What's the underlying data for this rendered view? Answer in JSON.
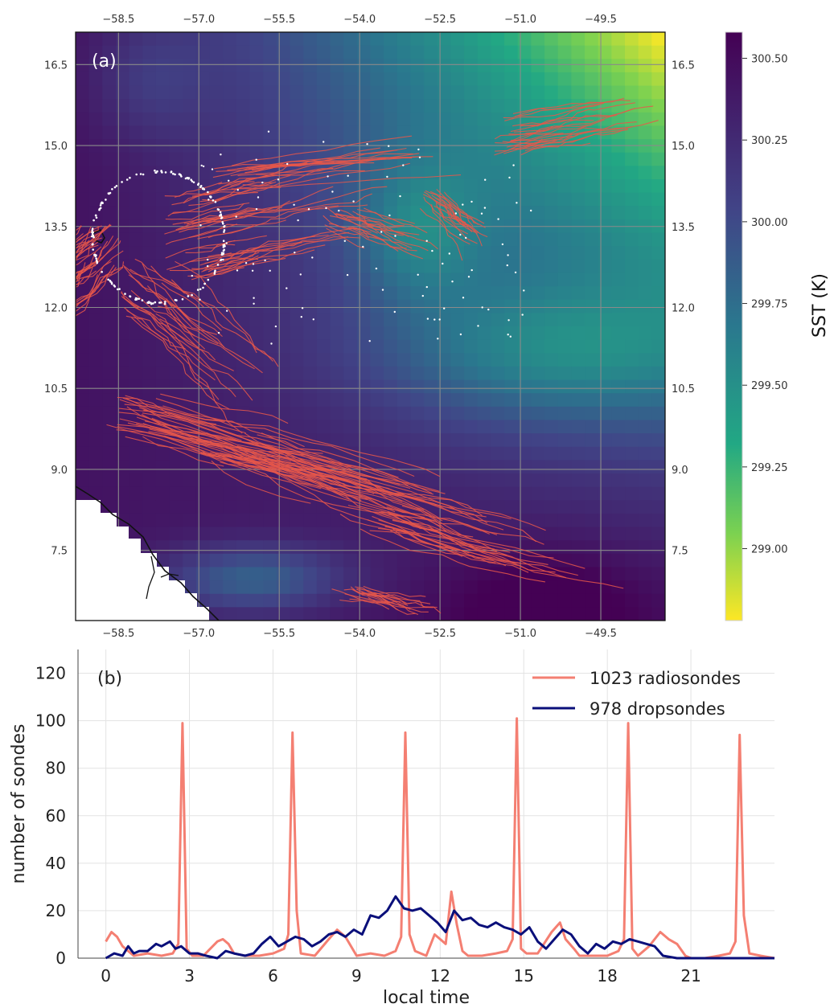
{
  "chart_data": [
    {
      "type": "heatmap",
      "panel_label": "(a)",
      "xticks": [
        "−58.5",
        "−57.0",
        "−55.5",
        "−54.0",
        "−52.5",
        "−51.0",
        "−49.5"
      ],
      "yticks": [
        "16.5",
        "15.0",
        "13.5",
        "12.0",
        "10.5",
        "9.0",
        "7.5"
      ],
      "xlim": [
        -59.3,
        -48.3
      ],
      "ylim": [
        6.2,
        17.1
      ],
      "colorbar": {
        "label": "SST (K)",
        "ticks": [
          "300.50",
          "300.25",
          "300.00",
          "299.75",
          "299.50",
          "299.25",
          "299.00"
        ],
        "range": [
          298.78,
          300.58
        ],
        "colormap": "viridis_r"
      },
      "track_color": "#e8574a",
      "dropsonde_color": "#ffffff"
    },
    {
      "type": "line",
      "panel_label": "(b)",
      "xlabel": "local time",
      "ylabel": "number of sondes",
      "xticks": [
        "0",
        "3",
        "6",
        "9",
        "12",
        "15",
        "18",
        "21"
      ],
      "yticks": [
        "0",
        "20",
        "40",
        "60",
        "80",
        "100",
        "120"
      ],
      "xlim": [
        -1,
        24
      ],
      "ylim": [
        0,
        130
      ],
      "legend_position": "top-right",
      "series": [
        {
          "name": "1023 radiosondes",
          "color": "#f47f72",
          "x": [
            0,
            0.2,
            0.4,
            0.6,
            0.8,
            1.0,
            1.5,
            2.0,
            2.4,
            2.6,
            2.75,
            2.9,
            3.1,
            3.5,
            4.0,
            4.2,
            4.4,
            4.6,
            5.0,
            5.5,
            6.0,
            6.4,
            6.55,
            6.7,
            6.85,
            7.0,
            7.5,
            8.0,
            8.3,
            8.6,
            9.0,
            9.5,
            10.0,
            10.4,
            10.6,
            10.75,
            10.9,
            11.1,
            11.5,
            11.8,
            12.0,
            12.2,
            12.4,
            12.6,
            12.8,
            13.0,
            13.5,
            14.0,
            14.4,
            14.6,
            14.75,
            14.9,
            15.1,
            15.5,
            16.0,
            16.3,
            16.5,
            16.8,
            17.0,
            17.5,
            18.0,
            18.4,
            18.6,
            18.75,
            18.9,
            19.1,
            19.5,
            19.9,
            20.2,
            20.5,
            20.8,
            21.0,
            21.5,
            22.0,
            22.4,
            22.6,
            22.75,
            22.9,
            23.1,
            23.5,
            24.0
          ],
          "values": [
            7,
            11,
            9,
            5,
            3,
            1,
            2,
            1,
            2,
            6,
            99,
            4,
            1,
            1,
            7,
            8,
            6,
            2,
            1,
            1,
            2,
            4,
            10,
            95,
            20,
            2,
            1,
            8,
            12,
            9,
            1,
            2,
            1,
            3,
            9,
            95,
            10,
            3,
            1,
            10,
            8,
            6,
            28,
            14,
            3,
            1,
            1,
            2,
            3,
            8,
            101,
            4,
            2,
            2,
            11,
            15,
            8,
            4,
            1,
            1,
            1,
            3,
            8,
            99,
            4,
            1,
            5,
            11,
            8,
            6,
            1,
            0,
            0,
            1,
            2,
            7,
            94,
            18,
            2,
            1,
            0
          ]
        },
        {
          "name": "978 dropsondes",
          "color": "#0a0f7a",
          "x": [
            0,
            0.3,
            0.6,
            0.8,
            1.0,
            1.2,
            1.5,
            1.8,
            2.0,
            2.3,
            2.5,
            2.7,
            3.0,
            3.3,
            3.6,
            4.0,
            4.3,
            4.6,
            5.0,
            5.3,
            5.6,
            5.9,
            6.2,
            6.5,
            6.8,
            7.1,
            7.4,
            7.7,
            8.0,
            8.3,
            8.6,
            8.9,
            9.2,
            9.5,
            9.8,
            10.1,
            10.4,
            10.7,
            11.0,
            11.3,
            11.6,
            11.9,
            12.2,
            12.5,
            12.8,
            13.1,
            13.4,
            13.7,
            14.0,
            14.3,
            14.6,
            14.9,
            15.2,
            15.5,
            15.8,
            16.1,
            16.4,
            16.7,
            17.0,
            17.3,
            17.6,
            17.9,
            18.2,
            18.5,
            18.8,
            19.1,
            19.4,
            19.7,
            20.0,
            20.5,
            21.0,
            21.5,
            22.0,
            22.5,
            23.0,
            23.5,
            24.0
          ],
          "values": [
            0,
            2,
            1,
            5,
            2,
            3,
            3,
            6,
            5,
            7,
            4,
            5,
            2,
            2,
            1,
            0,
            3,
            2,
            1,
            2,
            6,
            9,
            5,
            7,
            9,
            8,
            5,
            7,
            10,
            11,
            9,
            12,
            10,
            18,
            17,
            20,
            26,
            21,
            20,
            21,
            18,
            15,
            11,
            20,
            16,
            17,
            14,
            13,
            15,
            13,
            12,
            10,
            13,
            7,
            4,
            8,
            12,
            10,
            5,
            2,
            6,
            4,
            7,
            6,
            8,
            7,
            6,
            5,
            1,
            0,
            0,
            0,
            0,
            0,
            0,
            0,
            0
          ]
        }
      ]
    }
  ]
}
